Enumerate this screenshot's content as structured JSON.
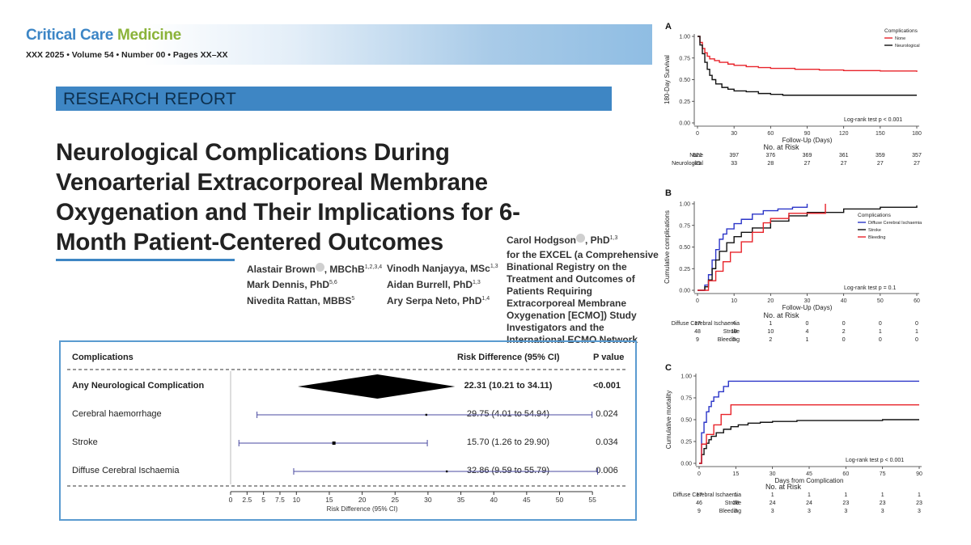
{
  "journal": {
    "name_part1": "Critical Care ",
    "name_part2": "Medicine",
    "issue": "XXX 2025 • Volume 54 • Number 00 • Pages XX–XX"
  },
  "section": "RESEARCH REPORT",
  "title": "Neurological Complications During Venoarterial Extracorporeal Membrane Oxygenation and Their Implications for 6-Month Patient-Centered Outcomes",
  "authors": [
    {
      "name": "Alastair Brown",
      "orcid": true,
      "degree": ", MBChB",
      "sup": "1,2,3,4"
    },
    {
      "name": "Mark Dennis",
      "orcid": false,
      "degree": ", PhD",
      "sup": "5,6"
    },
    {
      "name": "Nivedita Rattan",
      "orcid": false,
      "degree": ", MBBS",
      "sup": "5"
    },
    {
      "name": "Vinodh Nanjayya",
      "orcid": false,
      "degree": ", MSc",
      "sup": "1,3"
    },
    {
      "name": "Aidan Burrell",
      "orcid": false,
      "degree": ", PhD",
      "sup": "1,3"
    },
    {
      "name": "Ary Serpa Neto",
      "orcid": false,
      "degree": ", PhD",
      "sup": "1,4"
    },
    {
      "name": "Carol Hodgson",
      "orcid": true,
      "degree": ", PhD",
      "sup": "1,3"
    }
  ],
  "group_text": "for the EXCEL (a Comprehensive Binational Registry on the Treatment and Outcomes of Patients Requiring Extracorporeal Membrane Oxygenation [ECMO]) Study Investigators and the International ECMO Network",
  "forest": {
    "col_complications": "Complications",
    "col_rd": "Risk Difference (95% CI)",
    "col_p": "P value",
    "rows": [
      {
        "label": "Any Neurological Complication",
        "est": 22.31,
        "lo": 10.21,
        "hi": 34.11,
        "text": "22.31 (10.21 to 34.11)",
        "p": "<0.001",
        "bold": true,
        "marker": "diamond"
      },
      {
        "label": "Cerebral haemorrhage",
        "est": 29.75,
        "lo": 4.01,
        "hi": 54.94,
        "text": "29.75 (4.01 to 54.94)",
        "p": "0.024",
        "bold": false,
        "marker": "point"
      },
      {
        "label": "Stroke",
        "est": 15.7,
        "lo": 1.26,
        "hi": 29.9,
        "text": "15.70 (1.26 to 29.90)",
        "p": "0.034",
        "bold": false,
        "marker": "square"
      },
      {
        "label": "Diffuse Cerebral Ischaemia",
        "est": 32.86,
        "lo": 9.59,
        "hi": 55.79,
        "text": "32.86 (9.59 to 55.79)",
        "p": "0.006",
        "bold": false,
        "marker": "point"
      }
    ],
    "axis_ticks": [
      "0",
      "2.5",
      "5",
      "7.5",
      "10",
      "15",
      "20",
      "25",
      "30",
      "35",
      "40",
      "45",
      "50",
      "55"
    ],
    "axis_tick_values": [
      0,
      2.5,
      5,
      7.5,
      10,
      15,
      20,
      25,
      30,
      35,
      40,
      45,
      50,
      55
    ],
    "axis_label": "Risk Difference (95% CI)",
    "line_color": "#4a4aa0"
  },
  "chart_data": [
    {
      "panel": "A",
      "type": "line",
      "ylabel": "180-Day Survival",
      "xlabel": "Follow-Up (Days)",
      "xlim": [
        0,
        180
      ],
      "ylim": [
        0,
        1
      ],
      "xticks": [
        0,
        30,
        60,
        90,
        120,
        150,
        180
      ],
      "yticks": [
        "0.00",
        "0.25",
        "0.50",
        "0.75",
        "1.00"
      ],
      "legend_title": "Complications",
      "legend_position": "top-right",
      "annotation": "Log-rank test p < 0.001",
      "series": [
        {
          "name": "None",
          "color": "#e8232a",
          "x": [
            0,
            2,
            4,
            6,
            8,
            10,
            14,
            18,
            25,
            30,
            40,
            50,
            60,
            80,
            100,
            120,
            150,
            180
          ],
          "y": [
            1.0,
            0.93,
            0.86,
            0.81,
            0.77,
            0.74,
            0.72,
            0.7,
            0.68,
            0.665,
            0.65,
            0.64,
            0.63,
            0.62,
            0.612,
            0.605,
            0.6,
            0.59
          ]
        },
        {
          "name": "Neurological",
          "color": "#111111",
          "x": [
            0,
            2,
            4,
            6,
            8,
            10,
            12,
            15,
            20,
            25,
            30,
            40,
            50,
            60,
            70,
            180
          ],
          "y": [
            1.0,
            0.9,
            0.8,
            0.7,
            0.62,
            0.55,
            0.5,
            0.45,
            0.41,
            0.39,
            0.37,
            0.36,
            0.34,
            0.33,
            0.32,
            0.32
          ]
        }
      ],
      "risk_table": {
        "title": "No. at Risk",
        "times": [
          0,
          30,
          60,
          90,
          120,
          150,
          180
        ],
        "rows": [
          {
            "label": "None",
            "values": [
              "621",
              "397",
              "376",
              "369",
              "361",
              "359",
              "357"
            ]
          },
          {
            "label": "Neurological",
            "values": [
              "85",
              "33",
              "28",
              "27",
              "27",
              "27",
              "27"
            ]
          }
        ]
      }
    },
    {
      "panel": "B",
      "type": "line",
      "ylabel": "Cumulative complications",
      "xlabel": "Follow-Up (Days)",
      "xlim": [
        0,
        60
      ],
      "ylim": [
        0,
        1
      ],
      "xticks": [
        0,
        10,
        20,
        30,
        40,
        50,
        60
      ],
      "yticks": [
        "0.00",
        "0.25",
        "0.50",
        "0.75",
        "1.00"
      ],
      "legend_title": "Complications",
      "legend_position": "right",
      "annotation": "Log-rank test p = 0.1",
      "series": [
        {
          "name": "Diffuse Cerebral Ischaemia",
          "color": "#2b35c8",
          "x": [
            0,
            2,
            3,
            4,
            5,
            6,
            7,
            8,
            10,
            12,
            15,
            18,
            22,
            26,
            30
          ],
          "y": [
            0,
            0.06,
            0.18,
            0.35,
            0.47,
            0.59,
            0.65,
            0.71,
            0.77,
            0.82,
            0.88,
            0.92,
            0.94,
            0.96,
            1.0
          ]
        },
        {
          "name": "Stroke",
          "color": "#111111",
          "x": [
            0,
            2,
            3,
            4,
            5,
            6,
            8,
            10,
            12,
            15,
            20,
            25,
            30,
            40,
            50,
            60
          ],
          "y": [
            0,
            0.04,
            0.12,
            0.25,
            0.35,
            0.45,
            0.55,
            0.62,
            0.67,
            0.72,
            0.8,
            0.86,
            0.9,
            0.94,
            0.96,
            0.98
          ]
        },
        {
          "name": "Bleeding",
          "color": "#e8232a",
          "x": [
            0,
            3,
            5,
            7,
            9,
            12,
            15,
            18,
            20,
            25,
            30,
            35
          ],
          "y": [
            0,
            0.11,
            0.22,
            0.33,
            0.44,
            0.56,
            0.67,
            0.78,
            0.83,
            0.89,
            0.89,
            1.0
          ]
        }
      ],
      "risk_table": {
        "title": "No. at Risk",
        "times": [
          0,
          10,
          20,
          30,
          40,
          50,
          60
        ],
        "rows": [
          {
            "label": "Diffuse Cerebral Ischaemia",
            "values": [
              "17",
              "4",
              "1",
              "0",
              "0",
              "0",
              "0"
            ]
          },
          {
            "label": "Stroke",
            "values": [
              "48",
              "19",
              "10",
              "4",
              "2",
              "1",
              "1"
            ]
          },
          {
            "label": "Bleeding",
            "values": [
              "9",
              "5",
              "2",
              "1",
              "0",
              "0",
              "0"
            ]
          }
        ]
      }
    },
    {
      "panel": "C",
      "type": "line",
      "ylabel": "Cumulative mortality",
      "xlabel": "Days from Complication",
      "xlim": [
        0,
        90
      ],
      "ylim": [
        0,
        1
      ],
      "xticks": [
        0,
        15,
        30,
        45,
        60,
        75,
        90
      ],
      "yticks": [
        "0.00",
        "0.25",
        "0.50",
        "0.75",
        "1.00"
      ],
      "annotation": "Log-rank test p < 0.001",
      "series": [
        {
          "name": "Diffuse Cerebral Ischaemia",
          "color": "#2b35c8",
          "x": [
            0,
            1,
            2,
            3,
            4,
            5,
            6,
            8,
            10,
            12,
            15,
            90
          ],
          "y": [
            0,
            0.35,
            0.47,
            0.59,
            0.65,
            0.71,
            0.76,
            0.82,
            0.88,
            0.94,
            0.94,
            0.94
          ]
        },
        {
          "name": "Stroke",
          "color": "#111111",
          "x": [
            0,
            1,
            2,
            3,
            4,
            5,
            7,
            10,
            13,
            16,
            20,
            25,
            30,
            35,
            40,
            50,
            60,
            75,
            90
          ],
          "y": [
            0,
            0.1,
            0.17,
            0.23,
            0.27,
            0.31,
            0.35,
            0.39,
            0.42,
            0.44,
            0.46,
            0.47,
            0.48,
            0.48,
            0.49,
            0.49,
            0.49,
            0.5,
            0.5
          ]
        },
        {
          "name": "Bleeding",
          "color": "#e8232a",
          "x": [
            0,
            1,
            3,
            6,
            9,
            13,
            90
          ],
          "y": [
            0,
            0.22,
            0.33,
            0.44,
            0.56,
            0.67,
            0.67
          ]
        }
      ],
      "risk_table": {
        "title": "No. at Risk",
        "times": [
          0,
          15,
          30,
          45,
          60,
          75,
          90
        ],
        "rows": [
          {
            "label": "Diffuse Cerebral Ischaemia",
            "values": [
              "17",
              "1",
              "1",
              "1",
              "1",
              "1",
              "1"
            ]
          },
          {
            "label": "Stroke",
            "values": [
              "46",
              "28",
              "24",
              "24",
              "23",
              "23",
              "23"
            ]
          },
          {
            "label": "Bleeding",
            "values": [
              "9",
              "3",
              "3",
              "3",
              "3",
              "3",
              "3"
            ]
          }
        ]
      }
    }
  ]
}
